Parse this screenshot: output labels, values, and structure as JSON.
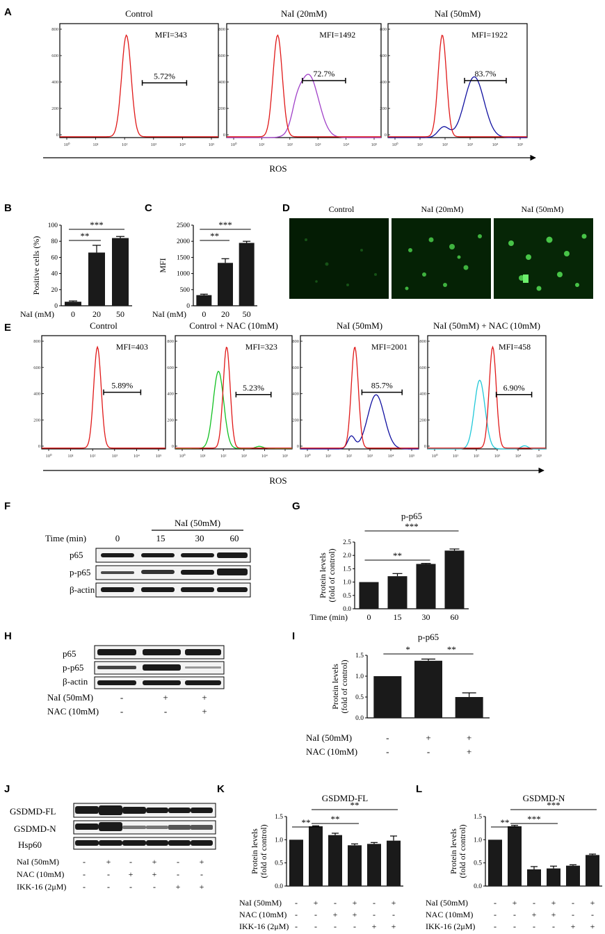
{
  "panels": {
    "A": "A",
    "B": "B",
    "C": "C",
    "D": "D",
    "E": "E",
    "F": "F",
    "G": "G",
    "H": "H",
    "I": "I",
    "J": "J",
    "K": "K",
    "L": "L"
  },
  "axis_title": "ROS",
  "flow_ticks": [
    "10⁰",
    "10¹",
    "10²",
    "10³",
    "10⁴",
    "10⁵"
  ],
  "flow_yticks": [
    "0",
    "200",
    "400",
    "600",
    "800"
  ],
  "colors": {
    "red": "#e01818",
    "purple": "#a040c8",
    "blue": "#1010a0",
    "green": "#10c020",
    "cyan": "#20c8d8",
    "bar": "#1a1a1a",
    "micro": "#062506"
  },
  "panelA": [
    {
      "title": "Control",
      "mfi": "MFI=343",
      "pct": "5.72%"
    },
    {
      "title": "NaI (20mM)",
      "mfi": "MFI=1492",
      "pct": "72.7%"
    },
    {
      "title": "NaI (50mM)",
      "mfi": "MFI=1922",
      "pct": "83.7%"
    }
  ],
  "panelE": [
    {
      "title": "Control",
      "mfi": "MFI=403",
      "pct": "5.89%"
    },
    {
      "title": "Control + NAC (10mM)",
      "mfi": "MFI=323",
      "pct": "5.23%"
    },
    {
      "title": "NaI (50mM)",
      "mfi": "MFI=2001",
      "pct": "85.7%"
    },
    {
      "title": "NaI (50mM) + NAC (10mM)",
      "mfi": "MFI=458",
      "pct": "6.90%"
    }
  ],
  "panelD": {
    "titles": [
      "Control",
      "NaI (20mM)",
      "NaI (50mM)"
    ]
  },
  "blotF": {
    "header": "NaI (50mM)",
    "time_label": "Time (min)",
    "times": [
      "0",
      "15",
      "30",
      "60"
    ],
    "rows": [
      "p65",
      "p-p65",
      "β-actin"
    ]
  },
  "blotH": {
    "rows": [
      "p65",
      "p-p65",
      "β-actin"
    ],
    "conds": [
      {
        "label": "NaI (50mM)",
        "vals": [
          "-",
          "+",
          "+"
        ]
      },
      {
        "label": "NAC (10mM)",
        "vals": [
          "-",
          "-",
          "+"
        ]
      }
    ]
  },
  "blotJ": {
    "rows": [
      "GSDMD-FL",
      "GSDMD-N",
      "Hsp60"
    ],
    "conds": [
      {
        "label": "NaI (50mM)",
        "vals": [
          "-",
          "+",
          "-",
          "+",
          "-",
          "+"
        ]
      },
      {
        "label": "NAC (10mM)",
        "vals": [
          "-",
          "-",
          "+",
          "+",
          "-",
          "-"
        ]
      },
      {
        "label": "IKK-16 (2μM)",
        "vals": [
          "-",
          "-",
          "-",
          "-",
          "+",
          "+"
        ]
      }
    ]
  },
  "chart_data": [
    {
      "id": "B",
      "type": "bar",
      "ylabel": "Positive cells (%)",
      "xlabel": "NaI (mM)",
      "categories": [
        "0",
        "20",
        "50"
      ],
      "values": [
        5,
        66,
        84
      ],
      "errors": [
        1,
        9,
        2
      ],
      "ylim": [
        0,
        100
      ],
      "yticks": [
        "0",
        "20",
        "40",
        "60",
        "80",
        "100"
      ],
      "signif": [
        {
          "label": "**",
          "from": 0,
          "to": 1
        },
        {
          "label": "***",
          "from": 0,
          "to": 2
        }
      ]
    },
    {
      "id": "C",
      "type": "bar",
      "ylabel": "MFI",
      "xlabel": "NaI (mM)",
      "categories": [
        "0",
        "20",
        "50"
      ],
      "values": [
        330,
        1330,
        1950
      ],
      "errors": [
        30,
        130,
        50
      ],
      "ylim": [
        0,
        2500
      ],
      "yticks": [
        "0",
        "500",
        "1000",
        "1500",
        "2000",
        "2500"
      ],
      "signif": [
        {
          "label": "**",
          "from": 0,
          "to": 1
        },
        {
          "label": "***",
          "from": 0,
          "to": 2
        }
      ]
    },
    {
      "id": "G",
      "type": "bar",
      "title": "p-p65",
      "ylabel": "Protein levels",
      "ylabel2": "(fold of control)",
      "xlabel": "Time (min)",
      "categories": [
        "0",
        "15",
        "30",
        "60"
      ],
      "values": [
        1.0,
        1.22,
        1.68,
        2.18
      ],
      "errors": [
        0,
        0.1,
        0.02,
        0.06
      ],
      "ylim": [
        0,
        2.5
      ],
      "yticks": [
        "0.0",
        "0.5",
        "1.0",
        "1.5",
        "2.0",
        "2.5"
      ],
      "signif": [
        {
          "label": "**",
          "from": 0,
          "to": 2
        },
        {
          "label": "***",
          "from": 0,
          "to": 3
        }
      ]
    },
    {
      "id": "I",
      "type": "bar",
      "title": "p-p65",
      "ylabel": "Protein levels",
      "ylabel2": "(fold of control)",
      "categories": [
        "1",
        "2",
        "3"
      ],
      "values": [
        1.0,
        1.37,
        0.5
      ],
      "errors": [
        0,
        0.04,
        0.1
      ],
      "ylim": [
        0,
        1.5
      ],
      "yticks": [
        "0.0",
        "0.5",
        "1.0",
        "1.5"
      ],
      "conds": [
        {
          "label": "NaI (50mM)",
          "vals": [
            "-",
            "+",
            "+"
          ]
        },
        {
          "label": "NAC (10mM)",
          "vals": [
            "-",
            "-",
            "+"
          ]
        }
      ],
      "signif": [
        {
          "label": "*",
          "from": 0,
          "to": 1
        },
        {
          "label": "**",
          "from": 1,
          "to": 2
        }
      ]
    },
    {
      "id": "K",
      "type": "bar",
      "title": "GSDMD-FL",
      "ylabel": "Protein levels",
      "ylabel2": "(fold of control)",
      "categories": [
        "1",
        "2",
        "3",
        "4",
        "5",
        "6"
      ],
      "values": [
        1.0,
        1.29,
        1.1,
        0.88,
        0.91,
        0.98
      ],
      "errors": [
        0,
        0.01,
        0.04,
        0.03,
        0.03,
        0.1
      ],
      "ylim": [
        0,
        1.5
      ],
      "yticks": [
        "0.0",
        "0.5",
        "1.0",
        "1.5"
      ],
      "conds": [
        {
          "label": "NaI (50mM)",
          "vals": [
            "-",
            "+",
            "-",
            "+",
            "-",
            "+"
          ]
        },
        {
          "label": "NAC (10mM)",
          "vals": [
            "-",
            "-",
            "+",
            "+",
            "-",
            "-"
          ]
        },
        {
          "label": "IKK-16 (2μM)",
          "vals": [
            "-",
            "-",
            "-",
            "-",
            "+",
            "+"
          ]
        }
      ],
      "signif": [
        {
          "label": "**",
          "from": 0,
          "to": 1
        },
        {
          "label": "**",
          "from": 1,
          "to": 3
        },
        {
          "label": "**",
          "from": 1,
          "to": 5
        }
      ]
    },
    {
      "id": "L",
      "type": "bar",
      "title": "GSDMD-N",
      "ylabel": "Protein levels",
      "ylabel2": "(fold of control)",
      "categories": [
        "1",
        "2",
        "3",
        "4",
        "5",
        "6"
      ],
      "values": [
        1.0,
        1.29,
        0.36,
        0.38,
        0.44,
        0.67
      ],
      "errors": [
        0,
        0.02,
        0.06,
        0.05,
        0.02,
        0.02
      ],
      "ylim": [
        0,
        1.5
      ],
      "yticks": [
        "0.0",
        "0.5",
        "1.0",
        "1.5"
      ],
      "conds": [
        {
          "label": "NaI (50mM)",
          "vals": [
            "-",
            "+",
            "-",
            "+",
            "-",
            "+"
          ]
        },
        {
          "label": "NAC (10mM)",
          "vals": [
            "-",
            "-",
            "+",
            "+",
            "-",
            "-"
          ]
        },
        {
          "label": "IKK-16 (2μM)",
          "vals": [
            "-",
            "-",
            "-",
            "-",
            "+",
            "+"
          ]
        }
      ],
      "signif": [
        {
          "label": "**",
          "from": 0,
          "to": 1
        },
        {
          "label": "***",
          "from": 1,
          "to": 3
        },
        {
          "label": "***",
          "from": 1,
          "to": 5
        }
      ]
    }
  ]
}
